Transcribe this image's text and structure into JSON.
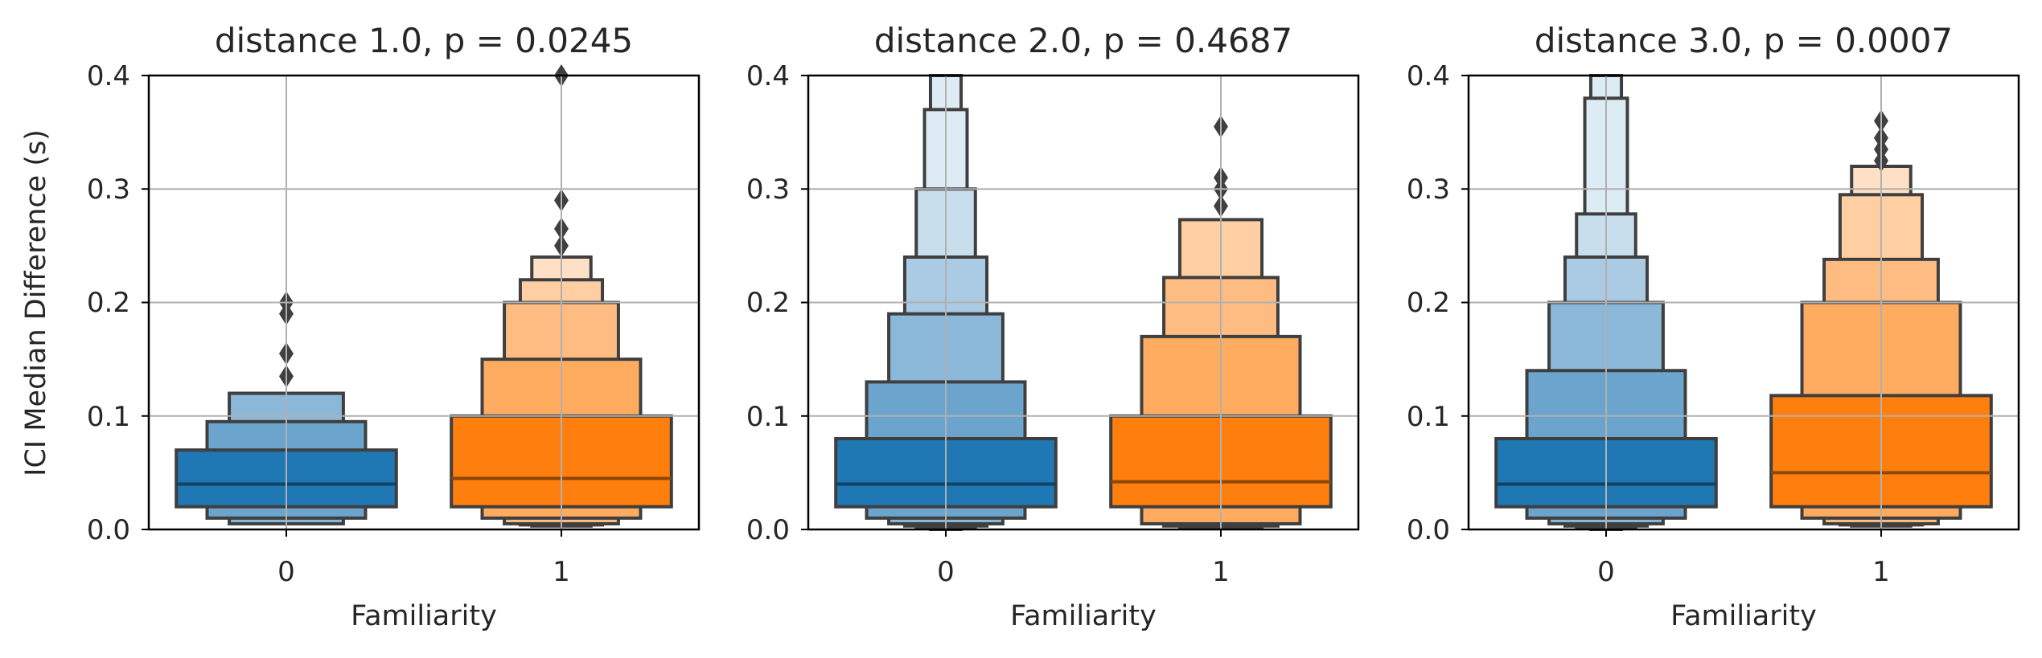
{
  "figure": {
    "ylabel": "ICI Median Difference (s)",
    "colors": {
      "series_0_base": "#1f77b4",
      "series_1_base": "#ff7f0e",
      "edge": "#3f3f3f",
      "grid": "#b0b0b0",
      "outlier": "#3f3f3f"
    }
  },
  "chart_data": [
    {
      "type": "boxen",
      "title": "distance 1.0, p = 0.0245",
      "xlabel": "Familiarity",
      "ylabel": "ICI Median Difference (s)",
      "categories": [
        "0",
        "1"
      ],
      "ylim": [
        0,
        0.4
      ],
      "yticks": [
        "0.0",
        "0.1",
        "0.2",
        "0.3",
        "0.4"
      ],
      "grid": true,
      "boxes": [
        {
          "category": "0",
          "median": 0.04,
          "levels": [
            [
              0.02,
              0.07
            ],
            [
              0.01,
              0.095
            ],
            [
              0.005,
              0.12
            ]
          ],
          "outliers": [
            0.135,
            0.155,
            0.19,
            0.2
          ]
        },
        {
          "category": "1",
          "median": 0.045,
          "levels": [
            [
              0.02,
              0.1
            ],
            [
              0.01,
              0.15
            ],
            [
              0.005,
              0.2
            ],
            [
              0.004,
              0.22
            ],
            [
              0.003,
              0.24
            ]
          ],
          "outliers": [
            0.25,
            0.265,
            0.29,
            0.4
          ]
        }
      ]
    },
    {
      "type": "boxen",
      "title": "distance 2.0, p = 0.4687",
      "xlabel": "Familiarity",
      "categories": [
        "0",
        "1"
      ],
      "ylim": [
        0,
        0.4
      ],
      "yticks": [
        "0.0",
        "0.1",
        "0.2",
        "0.3",
        "0.4"
      ],
      "grid": true,
      "boxes": [
        {
          "category": "0",
          "median": 0.04,
          "levels": [
            [
              0.02,
              0.08
            ],
            [
              0.01,
              0.13
            ],
            [
              0.005,
              0.19
            ],
            [
              0.003,
              0.24
            ],
            [
              0.002,
              0.3
            ],
            [
              0.001,
              0.37
            ],
            [
              0.0,
              0.4
            ]
          ],
          "outliers": []
        },
        {
          "category": "1",
          "median": 0.042,
          "levels": [
            [
              0.02,
              0.1
            ],
            [
              0.005,
              0.17
            ],
            [
              0.003,
              0.222
            ],
            [
              0.002,
              0.273
            ]
          ],
          "outliers": [
            0.285,
            0.3,
            0.31,
            0.355
          ]
        }
      ]
    },
    {
      "type": "boxen",
      "title": "distance 3.0, p = 0.0007",
      "xlabel": "Familiarity",
      "categories": [
        "0",
        "1"
      ],
      "ylim": [
        0,
        0.4
      ],
      "yticks": [
        "0.0",
        "0.1",
        "0.2",
        "0.3",
        "0.4"
      ],
      "grid": true,
      "boxes": [
        {
          "category": "0",
          "median": 0.04,
          "levels": [
            [
              0.02,
              0.08
            ],
            [
              0.01,
              0.14
            ],
            [
              0.005,
              0.2
            ],
            [
              0.003,
              0.24
            ],
            [
              0.002,
              0.278
            ],
            [
              0.001,
              0.38
            ],
            [
              0.0,
              0.4
            ]
          ],
          "outliers": []
        },
        {
          "category": "1",
          "median": 0.05,
          "levels": [
            [
              0.02,
              0.118
            ],
            [
              0.01,
              0.2
            ],
            [
              0.005,
              0.238
            ],
            [
              0.004,
              0.295
            ],
            [
              0.003,
              0.32
            ]
          ],
          "outliers": [
            0.325,
            0.335,
            0.345,
            0.36
          ]
        }
      ]
    }
  ]
}
